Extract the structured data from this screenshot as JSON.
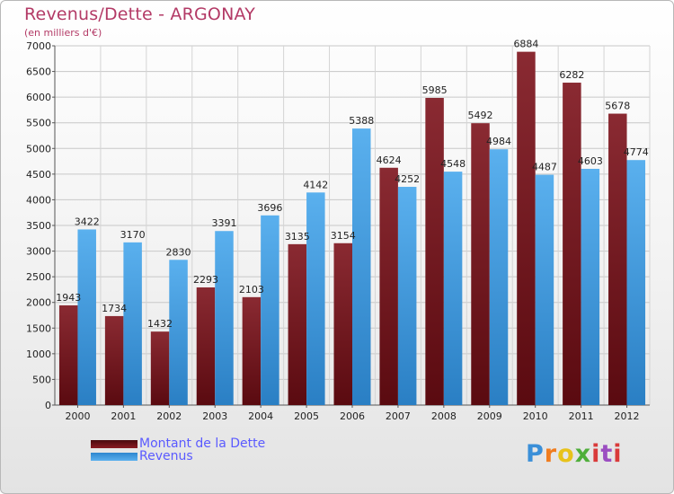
{
  "title": "Revenus/Dette - ARGONAY",
  "subtitle": "(en milliers d'€)",
  "logo_text": "Proxiti",
  "colors": {
    "title": "#b33a66",
    "debt_top": "#8a2a32",
    "debt_bottom": "#5a0a10",
    "revenue_top": "#5ab0ee",
    "revenue_bottom": "#2a7fc4",
    "legend_text": "#5a5aff"
  },
  "chart_data": {
    "type": "bar",
    "categories": [
      "2000",
      "2001",
      "2002",
      "2003",
      "2004",
      "2005",
      "2006",
      "2007",
      "2008",
      "2009",
      "2010",
      "2011",
      "2012"
    ],
    "series": [
      {
        "name": "Montant de la Dette",
        "values": [
          1943,
          1734,
          1432,
          2293,
          2103,
          3135,
          3154,
          4624,
          5985,
          5492,
          6884,
          6282,
          5678
        ]
      },
      {
        "name": "Revenus",
        "values": [
          3422,
          3170,
          2830,
          3391,
          3696,
          4142,
          5388,
          4252,
          4548,
          4984,
          4487,
          4603,
          4774
        ]
      }
    ],
    "y_ticks": [
      0,
      500,
      1000,
      1500,
      2000,
      2500,
      3000,
      3500,
      4000,
      4500,
      5000,
      5500,
      6000,
      6500,
      7000
    ],
    "ylim": [
      0,
      7000
    ],
    "grid": true,
    "legend_position": "bottom-left"
  }
}
